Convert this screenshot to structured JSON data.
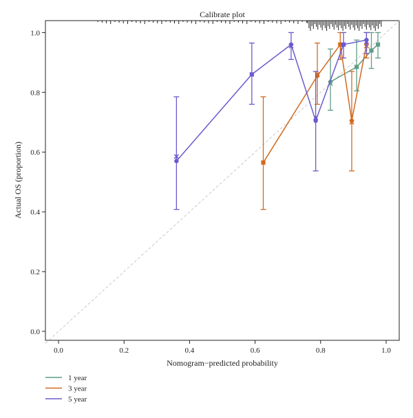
{
  "chart_data": {
    "type": "line",
    "title": "Calibrate plot",
    "xlabel": "Nomogram−predicted probability",
    "ylabel": "Actual OS (proportion)",
    "xlim": [
      -0.04,
      1.04
    ],
    "ylim": [
      -0.03,
      1.04
    ],
    "xticks": [
      0.0,
      0.2,
      0.4,
      0.6,
      0.8,
      1.0
    ],
    "yticks": [
      0.0,
      0.2,
      0.4,
      0.6,
      0.8,
      1.0
    ],
    "tick_labels_x": [
      "0.0",
      "0.2",
      "0.4",
      "0.6",
      "0.8",
      "1.0"
    ],
    "tick_labels_y": [
      "0.0",
      "0.2",
      "0.4",
      "0.6",
      "0.8",
      "1.0"
    ],
    "grid": false,
    "legend_placement": "bottom-left",
    "reference_line": {
      "style": "dashed",
      "color": "#c8c8c8"
    },
    "rug_top": {
      "color": "#222222"
    },
    "series": [
      {
        "name": "1 year",
        "color": "#5f9c86",
        "points": [
          {
            "x": 0.83,
            "y": 0.835,
            "lo": 0.74,
            "hi": 0.945,
            "x_obs": 0.83,
            "y_obs": 0.83
          },
          {
            "x": 0.91,
            "y": 0.885,
            "lo": 0.805,
            "hi": 0.975,
            "x_obs": 0.91,
            "y_obs": 0.885
          },
          {
            "x": 0.955,
            "y": 0.94,
            "lo": 0.88,
            "hi": 1.0,
            "x_obs": 0.955,
            "y_obs": 0.94
          },
          {
            "x": 0.975,
            "y": 0.96,
            "lo": 0.915,
            "hi": 1.0,
            "x_obs": 0.975,
            "y_obs": 0.96
          }
        ]
      },
      {
        "name": "3 year",
        "color": "#d2691e",
        "points": [
          {
            "x": 0.625,
            "y": 0.565,
            "lo": 0.408,
            "hi": 0.785,
            "x_obs": 0.625,
            "y_obs": 0.565
          },
          {
            "x": 0.79,
            "y": 0.855,
            "lo": 0.76,
            "hi": 0.965,
            "x_obs": 0.79,
            "y_obs": 0.86
          },
          {
            "x": 0.86,
            "y": 0.96,
            "lo": 0.91,
            "hi": 1.0,
            "x_obs": 0.86,
            "y_obs": 0.96
          },
          {
            "x": 0.895,
            "y": 0.705,
            "lo": 0.537,
            "hi": 0.87,
            "x_obs": 0.895,
            "y_obs": 0.7
          },
          {
            "x": 0.94,
            "y": 0.96,
            "lo": 0.915,
            "hi": 1.0,
            "x_obs": 0.94,
            "y_obs": 0.955
          }
        ]
      },
      {
        "name": "5 year",
        "color": "#6a5acd",
        "points": [
          {
            "x": 0.36,
            "y": 0.57,
            "lo": 0.408,
            "hi": 0.785,
            "x_obs": 0.36,
            "y_obs": 0.585
          },
          {
            "x": 0.59,
            "y": 0.86,
            "lo": 0.76,
            "hi": 0.965,
            "x_obs": 0.59,
            "y_obs": 0.86
          },
          {
            "x": 0.71,
            "y": 0.96,
            "lo": 0.91,
            "hi": 1.0,
            "x_obs": 0.71,
            "y_obs": 0.955
          },
          {
            "x": 0.785,
            "y": 0.705,
            "lo": 0.537,
            "hi": 0.87,
            "x_obs": 0.785,
            "y_obs": 0.715
          },
          {
            "x": 0.87,
            "y": 0.96,
            "lo": 0.915,
            "hi": 1.0,
            "x_obs": 0.87,
            "y_obs": 0.96
          },
          {
            "x": 0.94,
            "y": 0.975,
            "lo": 0.93,
            "hi": 1.0,
            "x_obs": 0.94,
            "y_obs": 0.97
          }
        ]
      }
    ]
  }
}
